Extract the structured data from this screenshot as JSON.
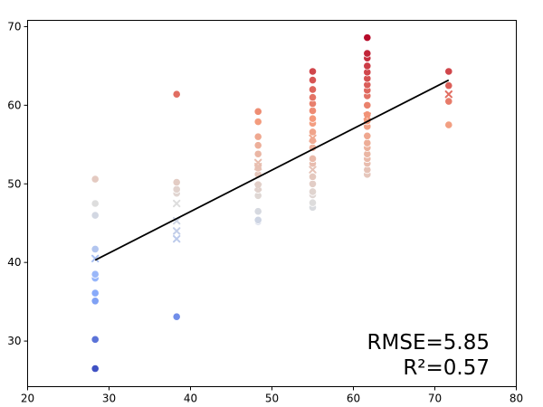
{
  "chart_data": {
    "type": "scatter",
    "title": "",
    "xlabel": "",
    "ylabel": "",
    "xlim": [
      20,
      80
    ],
    "ylim": [
      24.2,
      70.8
    ],
    "x_ticks": [
      20,
      30,
      40,
      50,
      60,
      70,
      80
    ],
    "y_ticks": [
      30,
      40,
      50,
      60,
      70
    ],
    "grid": false,
    "legend": "none",
    "colormap": "coolwarm",
    "color_range": [
      26,
      69
    ],
    "annotations": [
      "RMSE=5.85",
      "R²=0.57"
    ],
    "fit_line": {
      "x": [
        28.3,
        71.7
      ],
      "y": [
        40.3,
        63.2
      ],
      "color": "#000000"
    },
    "series": [
      {
        "marker": "circle",
        "points": [
          [
            28.3,
            26.5
          ],
          [
            28.3,
            30.2
          ],
          [
            28.3,
            35.1
          ],
          [
            28.3,
            36.1
          ],
          [
            28.3,
            38.0
          ],
          [
            28.3,
            38.5
          ],
          [
            28.3,
            41.7
          ],
          [
            28.3,
            46.0
          ],
          [
            28.3,
            47.5
          ],
          [
            28.3,
            50.6
          ],
          [
            38.3,
            33.1
          ],
          [
            38.3,
            48.8
          ],
          [
            38.3,
            49.3
          ],
          [
            38.3,
            50.2
          ],
          [
            38.3,
            61.4
          ],
          [
            48.3,
            45.2
          ],
          [
            48.3,
            45.4
          ],
          [
            48.3,
            46.5
          ],
          [
            48.3,
            48.5
          ],
          [
            48.3,
            49.3
          ],
          [
            48.3,
            49.9
          ],
          [
            48.3,
            51.2
          ],
          [
            48.3,
            52.0
          ],
          [
            48.3,
            53.8
          ],
          [
            48.3,
            54.9
          ],
          [
            48.3,
            56.0
          ],
          [
            48.3,
            57.9
          ],
          [
            48.3,
            59.2
          ],
          [
            55.0,
            47.0
          ],
          [
            55.0,
            47.6
          ],
          [
            55.0,
            48.6
          ],
          [
            55.0,
            49.0
          ],
          [
            55.0,
            50.0
          ],
          [
            55.0,
            50.9
          ],
          [
            55.0,
            52.6
          ],
          [
            55.0,
            53.2
          ],
          [
            55.0,
            54.6
          ],
          [
            55.0,
            55.5
          ],
          [
            55.0,
            56.6
          ],
          [
            55.0,
            57.7
          ],
          [
            55.0,
            58.3
          ],
          [
            55.0,
            59.3
          ],
          [
            55.0,
            60.2
          ],
          [
            55.0,
            61.0
          ],
          [
            55.0,
            62.0
          ],
          [
            55.0,
            63.2
          ],
          [
            55.0,
            64.3
          ],
          [
            61.7,
            51.2
          ],
          [
            61.7,
            51.8
          ],
          [
            61.7,
            52.6
          ],
          [
            61.7,
            53.2
          ],
          [
            61.7,
            53.8
          ],
          [
            61.7,
            54.6
          ],
          [
            61.7,
            55.2
          ],
          [
            61.7,
            56.1
          ],
          [
            61.7,
            57.3
          ],
          [
            61.7,
            58.0
          ],
          [
            61.7,
            58.8
          ],
          [
            61.7,
            60.0
          ],
          [
            61.7,
            61.2
          ],
          [
            61.7,
            61.9
          ],
          [
            61.7,
            62.6
          ],
          [
            61.7,
            63.4
          ],
          [
            61.7,
            64.2
          ],
          [
            61.7,
            65.0
          ],
          [
            61.7,
            66.0
          ],
          [
            61.7,
            66.6
          ],
          [
            61.7,
            68.6
          ],
          [
            71.7,
            57.5
          ],
          [
            71.7,
            60.5
          ],
          [
            71.7,
            62.5
          ],
          [
            71.7,
            64.3
          ]
        ]
      },
      {
        "marker": "x",
        "points": [
          [
            28.3,
            40.5
          ],
          [
            38.3,
            43.0
          ],
          [
            38.3,
            44.0
          ],
          [
            38.3,
            45.3
          ],
          [
            38.3,
            47.5
          ],
          [
            48.3,
            49.6
          ],
          [
            48.3,
            52.2
          ],
          [
            48.3,
            52.7
          ],
          [
            55.0,
            51.8
          ],
          [
            55.0,
            55.8
          ],
          [
            61.7,
            58.6
          ],
          [
            71.7,
            61.4
          ]
        ]
      }
    ]
  }
}
